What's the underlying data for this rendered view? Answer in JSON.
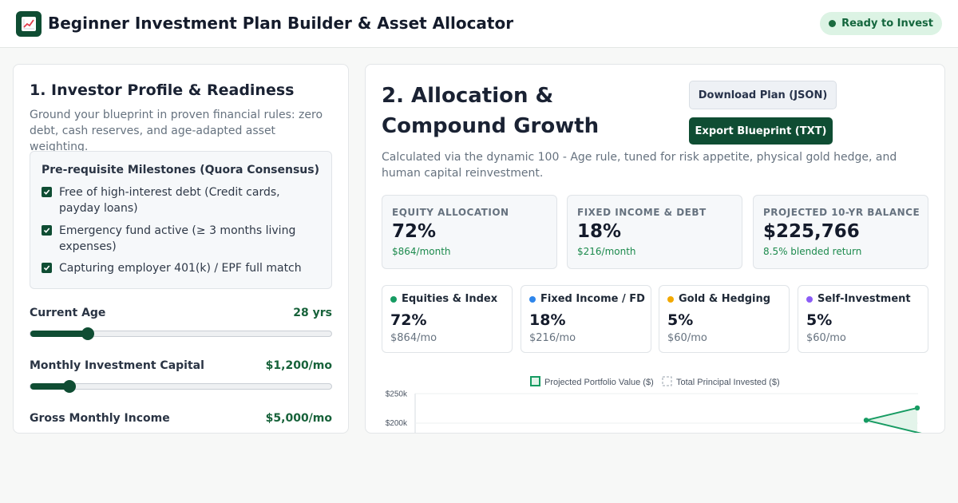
{
  "app": {
    "title": "Beginner Investment Plan Builder & Asset Allocator",
    "logo_icon": "chart-increasing-icon",
    "status": "Ready to Invest"
  },
  "colors": {
    "brand": "#0f4d33",
    "accent_green": "#1c8a4d",
    "equities": "#169b62",
    "fixed_income": "#2f86eb",
    "gold": "#f2a900",
    "self_investment": "#8b5cf6"
  },
  "profile": {
    "title": "1. Investor Profile & Readiness",
    "subtitle": "Ground your blueprint in proven financial rules: zero debt, cash reserves, and age-adapted asset weighting.",
    "milestones": {
      "title": "Pre-requisite Milestones (Quora Consensus)",
      "items": [
        {
          "label": "Free of high-interest debt (Credit cards, payday loans)",
          "checked": true
        },
        {
          "label": "Emergency fund active (≥ 3 months living expenses)",
          "checked": true
        },
        {
          "label": "Capturing employer 401(k) / EPF full match",
          "checked": true
        }
      ]
    },
    "sliders": [
      {
        "label": "Current Age",
        "value": "28 yrs",
        "fraction": 0.19
      },
      {
        "label": "Monthly Investment Capital",
        "value": "$1,200/mo",
        "fraction": 0.13
      },
      {
        "label": "Gross Monthly Income",
        "value": "$5,000/mo",
        "fraction": 0.18
      }
    ]
  },
  "allocation": {
    "title": "2. Allocation & Compound Growth",
    "download_label": "Download Plan (JSON)",
    "export_label": "Export Blueprint (TXT)",
    "subtitle": "Calculated via the dynamic 100 - Age rule, tuned for risk appetite, physical gold hedge, and human capital reinvestment.",
    "stats": [
      {
        "label": "EQUITY ALLOCATION",
        "value": "72%",
        "note": "$864/month"
      },
      {
        "label": "FIXED INCOME & DEBT",
        "value": "18%",
        "note": "$216/month"
      },
      {
        "label": "PROJECTED 10-YR BALANCE",
        "value": "$225,766",
        "note": "8.5% blended return"
      }
    ],
    "buckets": [
      {
        "name": "Equities & Index",
        "percent": "72%",
        "amount": "$864/mo",
        "color": "#169b62"
      },
      {
        "name": "Fixed Income / FD",
        "percent": "18%",
        "amount": "$216/mo",
        "color": "#2f86eb"
      },
      {
        "name": "Gold & Hedging",
        "percent": "5%",
        "amount": "$60/mo",
        "color": "#f2a900"
      },
      {
        "name": "Self-Investment",
        "percent": "5%",
        "amount": "$60/mo",
        "color": "#8b5cf6"
      }
    ]
  },
  "chart_data": {
    "type": "line",
    "legend": [
      "Projected Portfolio Value ($)",
      "Total Principal Invested ($)"
    ],
    "legend_position": "top-center",
    "ytick_labels": [
      "$250k",
      "$200k"
    ],
    "ylim": [
      0,
      250000
    ],
    "series": [
      {
        "name": "Projected Portfolio Value ($)",
        "style": "solid",
        "visible_values": [
          205000,
          225766
        ]
      }
    ],
    "grid": true
  }
}
